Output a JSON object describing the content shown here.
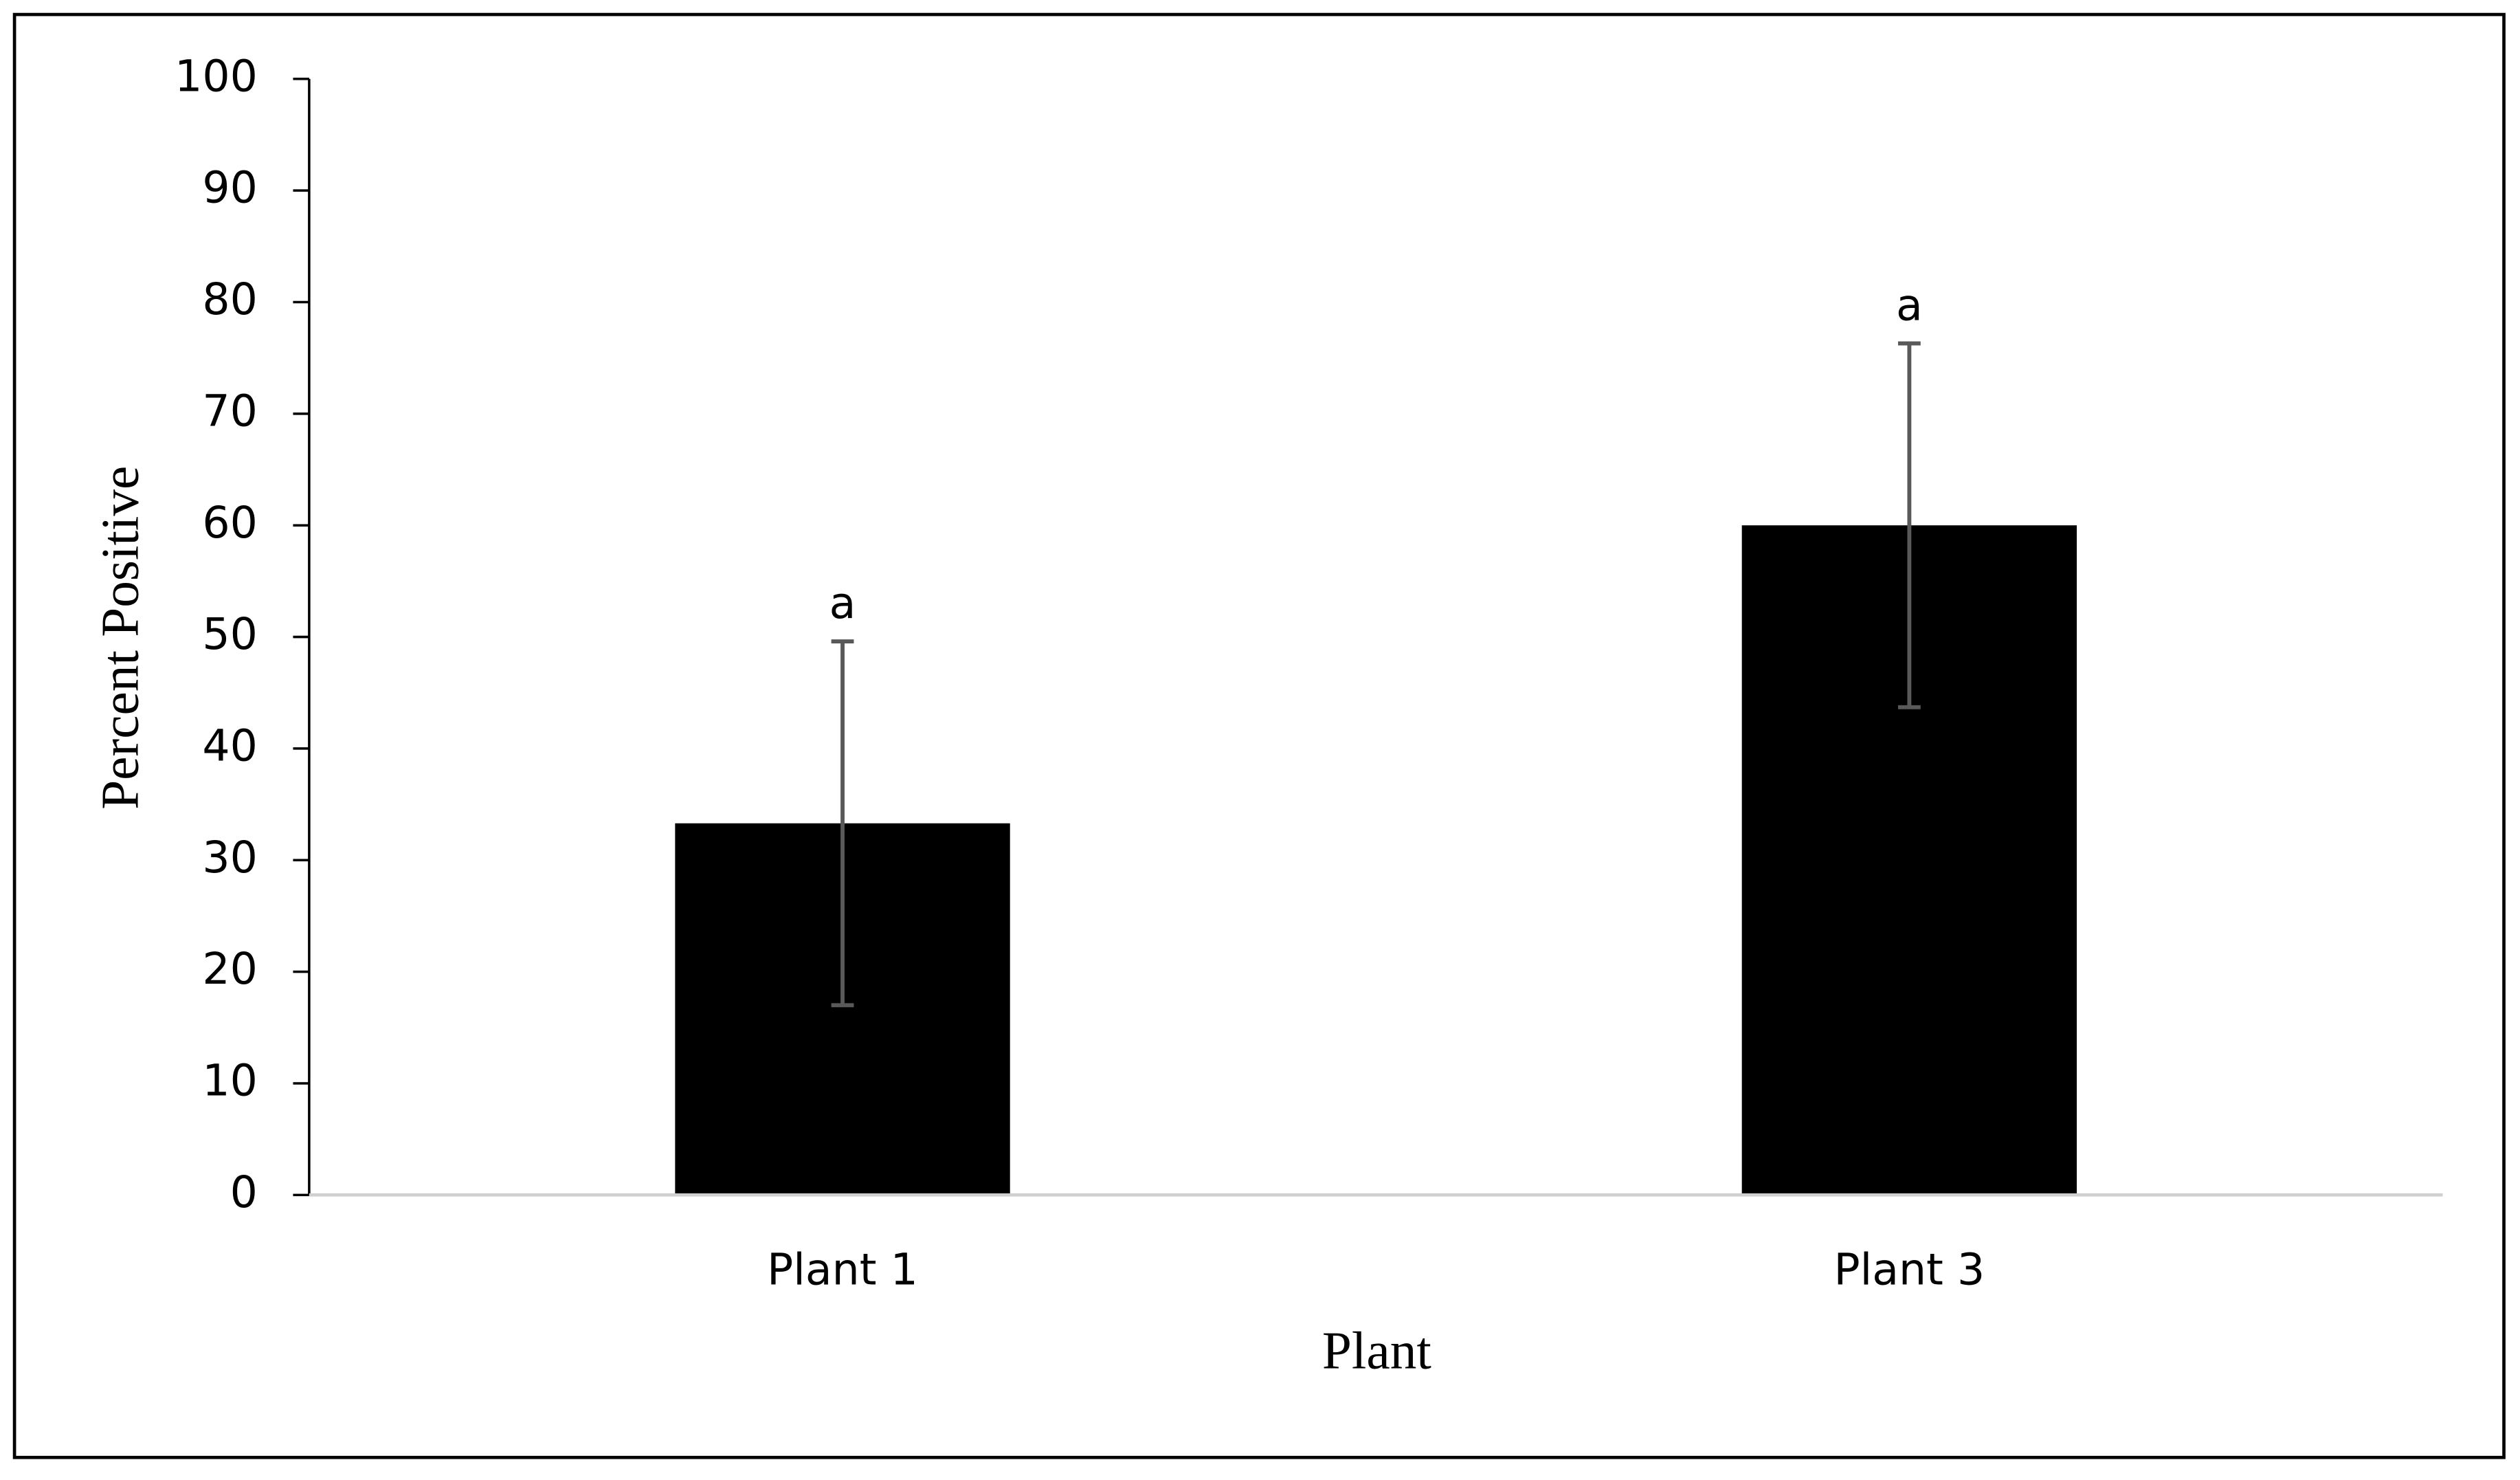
{
  "chart_data": {
    "type": "bar",
    "x_label": "Plant",
    "y_label": "Percent Positive",
    "categories": [
      "Plant 1",
      "Plant 3"
    ],
    "values": [
      33.3,
      60
    ],
    "errors": [
      16.3,
      16.3
    ],
    "annotations": [
      "a",
      "a"
    ],
    "color": "#000000",
    "error_color": "#595959",
    "ylim": [
      0,
      100
    ],
    "yticks": [
      0,
      10,
      20,
      30,
      40,
      50,
      60,
      70,
      80,
      90,
      100
    ],
    "grid": false
  }
}
